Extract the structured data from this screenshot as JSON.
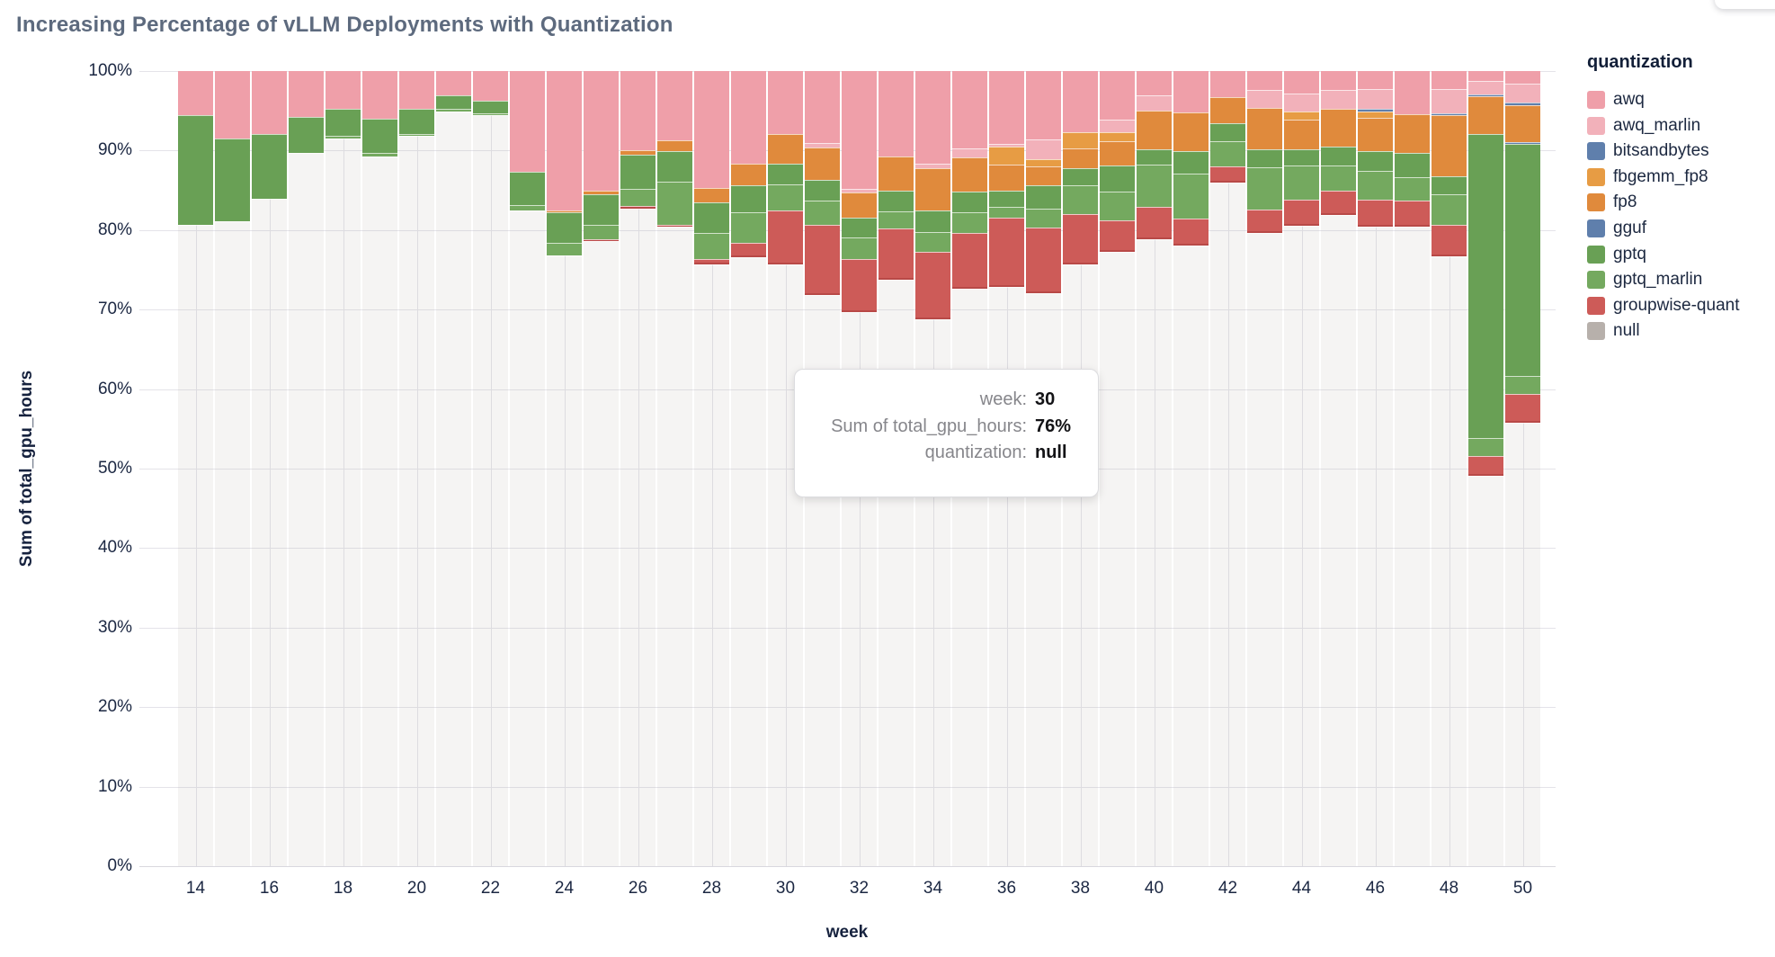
{
  "page": {
    "title": "Increasing Percentage of vLLM Deployments with Quantization"
  },
  "legend": {
    "title": "quantization",
    "items": [
      {
        "label": "awq",
        "color": "#ef9fa9"
      },
      {
        "label": "awq_marlin",
        "color": "#f2b1ba"
      },
      {
        "label": "bitsandbytes",
        "color": "#5f7fac"
      },
      {
        "label": "fbgemm_fp8",
        "color": "#e79c44"
      },
      {
        "label": "fp8",
        "color": "#e08a3c"
      },
      {
        "label": "gguf",
        "color": "#5f7fac"
      },
      {
        "label": "gptq",
        "color": "#69a055"
      },
      {
        "label": "gptq_marlin",
        "color": "#74a95f"
      },
      {
        "label": "groupwise-quant",
        "color": "#cd5b58"
      },
      {
        "label": "null",
        "color": "#b7b0ab"
      }
    ]
  },
  "tooltip": {
    "rows": [
      {
        "label": "week:",
        "value": "30"
      },
      {
        "label": "Sum of total_gpu_hours:",
        "value": "76%"
      },
      {
        "label": "quantization:",
        "value": "null"
      }
    ]
  },
  "chart_data": {
    "type": "bar",
    "stacked": true,
    "percent_stacked": true,
    "title": "Increasing Percentage of vLLM Deployments with Quantization",
    "xlabel": "week",
    "ylabel": "Sum of total_gpu_hours",
    "ylim": [
      0,
      100
    ],
    "y_ticks": [
      0,
      10,
      20,
      30,
      40,
      50,
      60,
      70,
      80,
      90,
      100
    ],
    "x_ticks": [
      14,
      16,
      18,
      20,
      22,
      24,
      26,
      28,
      30,
      32,
      34,
      36,
      38,
      40,
      42,
      44,
      46,
      48,
      50
    ],
    "grid": true,
    "legend_position": "right",
    "series_order_top_to_bottom": [
      "awq",
      "awq_marlin",
      "bitsandbytes",
      "fbgemm_fp8",
      "fp8",
      "gguf",
      "gptq",
      "gptq_marlin",
      "groupwise-quant",
      "null"
    ],
    "colors": {
      "awq": "#ef9fa9",
      "awq_marlin": "#f2b1ba",
      "bitsandbytes": "#5f7fac",
      "fbgemm_fp8": "#e79c44",
      "fp8": "#e08a3c",
      "gguf": "#5f7fac",
      "gptq": "#69a055",
      "gptq_marlin": "#74a95f",
      "groupwise-quant": "#cd5b58",
      "null": "rgba(182,174,168,0.14)"
    },
    "bars": [
      {
        "week": 14,
        "segments": [
          [
            "awq",
            5.5
          ],
          [
            "gptq",
            13.8
          ],
          [
            "null",
            80.7
          ]
        ]
      },
      {
        "week": 15,
        "segments": [
          [
            "awq",
            8.5
          ],
          [
            "gptq",
            10.4
          ],
          [
            "null",
            81.1
          ]
        ]
      },
      {
        "week": 16,
        "segments": [
          [
            "awq",
            7.9
          ],
          [
            "gptq",
            8.2
          ],
          [
            "null",
            83.9
          ]
        ]
      },
      {
        "week": 17,
        "segments": [
          [
            "awq",
            5.8
          ],
          [
            "gptq",
            4.5
          ],
          [
            "null",
            89.7
          ]
        ]
      },
      {
        "week": 18,
        "segments": [
          [
            "awq",
            4.8
          ],
          [
            "gptq",
            3.4
          ],
          [
            "gptq_marlin",
            0.3
          ],
          [
            "null",
            91.5
          ]
        ]
      },
      {
        "week": 19,
        "segments": [
          [
            "awq",
            6.0
          ],
          [
            "gptq",
            4.3
          ],
          [
            "gptq_marlin",
            0.4
          ],
          [
            "null",
            89.3
          ]
        ]
      },
      {
        "week": 20,
        "segments": [
          [
            "awq",
            4.7
          ],
          [
            "gptq",
            3.2
          ],
          [
            "gptq_marlin",
            0.3
          ],
          [
            "null",
            91.8
          ]
        ]
      },
      {
        "week": 21,
        "segments": [
          [
            "awq",
            3.1
          ],
          [
            "gptq",
            1.7
          ],
          [
            "gptq_marlin",
            0.3
          ],
          [
            "null",
            94.9
          ]
        ]
      },
      {
        "week": 22,
        "segments": [
          [
            "awq",
            3.7
          ],
          [
            "gptq",
            1.6
          ],
          [
            "gptq_marlin",
            0.2
          ],
          [
            "null",
            94.5
          ]
        ]
      },
      {
        "week": 23,
        "segments": [
          [
            "awq",
            12.7
          ],
          [
            "gptq",
            4.2
          ],
          [
            "gptq_marlin",
            0.6
          ],
          [
            "null",
            82.5
          ]
        ]
      },
      {
        "week": 24,
        "segments": [
          [
            "awq",
            17.5
          ],
          [
            "fp8",
            0.3
          ],
          [
            "gptq",
            3.8
          ],
          [
            "gptq_marlin",
            1.6
          ],
          [
            "null",
            76.8
          ]
        ]
      },
      {
        "week": 25,
        "segments": [
          [
            "awq",
            15.1
          ],
          [
            "fp8",
            0.4
          ],
          [
            "gptq",
            3.9
          ],
          [
            "gptq_marlin",
            1.8
          ],
          [
            "groupwise-quant",
            0.2
          ],
          [
            "null",
            78.6
          ]
        ]
      },
      {
        "week": 26,
        "segments": [
          [
            "awq",
            10.0
          ],
          [
            "fp8",
            0.5
          ],
          [
            "gptq",
            4.3
          ],
          [
            "gptq_marlin",
            2.2
          ],
          [
            "groupwise-quant",
            0.3
          ],
          [
            "null",
            82.7
          ]
        ]
      },
      {
        "week": 27,
        "segments": [
          [
            "awq",
            8.7
          ],
          [
            "fp8",
            1.4
          ],
          [
            "gptq",
            3.8
          ],
          [
            "gptq_marlin",
            5.4
          ],
          [
            "groupwise-quant",
            0.3
          ],
          [
            "null",
            80.4
          ]
        ]
      },
      {
        "week": 28,
        "segments": [
          [
            "awq",
            14.7
          ],
          [
            "fp8",
            1.8
          ],
          [
            "gptq",
            3.9
          ],
          [
            "gptq_marlin",
            3.2
          ],
          [
            "groupwise-quant",
            0.7
          ],
          [
            "null",
            75.7
          ]
        ]
      },
      {
        "week": 29,
        "segments": [
          [
            "awq",
            11.7
          ],
          [
            "fp8",
            2.7
          ],
          [
            "gptq",
            3.4
          ],
          [
            "gptq_marlin",
            3.8
          ],
          [
            "groupwise-quant",
            1.8
          ],
          [
            "null",
            76.6
          ]
        ]
      },
      {
        "week": 30,
        "segments": [
          [
            "awq",
            7.9
          ],
          [
            "fp8",
            3.7
          ],
          [
            "gptq",
            2.7
          ],
          [
            "gptq_marlin",
            3.2
          ],
          [
            "groupwise-quant",
            6.8
          ],
          [
            "null",
            75.7
          ]
        ]
      },
      {
        "week": 31,
        "segments": [
          [
            "awq",
            9.1
          ],
          [
            "awq_marlin",
            0.5
          ],
          [
            "fp8",
            4.1
          ],
          [
            "gptq",
            2.6
          ],
          [
            "gptq_marlin",
            3.0
          ],
          [
            "groupwise-quant",
            8.9
          ],
          [
            "null",
            71.8
          ]
        ]
      },
      {
        "week": 32,
        "segments": [
          [
            "awq",
            14.8
          ],
          [
            "awq_marlin",
            0.5
          ],
          [
            "fp8",
            3.1
          ],
          [
            "gptq",
            2.5
          ],
          [
            "gptq_marlin",
            2.7
          ],
          [
            "groupwise-quant",
            6.7
          ],
          [
            "null",
            69.7
          ]
        ]
      },
      {
        "week": 33,
        "segments": [
          [
            "awq",
            10.7
          ],
          [
            "fp8",
            4.3
          ],
          [
            "gptq",
            2.6
          ],
          [
            "gptq_marlin",
            2.2
          ],
          [
            "groupwise-quant",
            6.5
          ],
          [
            "null",
            73.7
          ]
        ]
      },
      {
        "week": 34,
        "segments": [
          [
            "awq",
            11.7
          ],
          [
            "awq_marlin",
            0.5
          ],
          [
            "fp8",
            5.3
          ],
          [
            "gptq",
            2.8
          ],
          [
            "gptq_marlin",
            2.4
          ],
          [
            "groupwise-quant",
            8.5
          ],
          [
            "null",
            68.8
          ]
        ]
      },
      {
        "week": 35,
        "segments": [
          [
            "awq",
            9.7
          ],
          [
            "awq_marlin",
            1.2
          ],
          [
            "fp8",
            4.3
          ],
          [
            "gptq",
            2.6
          ],
          [
            "gptq_marlin",
            2.6
          ],
          [
            "groupwise-quant",
            7.0
          ],
          [
            "null",
            72.6
          ]
        ]
      },
      {
        "week": 36,
        "segments": [
          [
            "awq",
            9.2
          ],
          [
            "awq_marlin",
            0.3
          ],
          [
            "fbgemm_fp8",
            2.3
          ],
          [
            "fp8",
            3.2
          ],
          [
            "gptq",
            2.1
          ],
          [
            "gptq_marlin",
            1.3
          ],
          [
            "groupwise-quant",
            8.7
          ],
          [
            "null",
            72.9
          ]
        ]
      },
      {
        "week": 37,
        "segments": [
          [
            "awq",
            8.6
          ],
          [
            "awq_marlin",
            2.5
          ],
          [
            "fbgemm_fp8",
            0.9
          ],
          [
            "fp8",
            2.4
          ],
          [
            "gptq",
            2.9
          ],
          [
            "gptq_marlin",
            2.4
          ],
          [
            "groupwise-quant",
            8.2
          ],
          [
            "null",
            72.1
          ]
        ]
      },
      {
        "week": 38,
        "segments": [
          [
            "awq",
            7.7
          ],
          [
            "fbgemm_fp8",
            2.0
          ],
          [
            "fp8",
            2.5
          ],
          [
            "gptq",
            2.2
          ],
          [
            "gptq_marlin",
            3.6
          ],
          [
            "groupwise-quant",
            6.3
          ],
          [
            "null",
            75.7
          ]
        ]
      },
      {
        "week": 39,
        "segments": [
          [
            "awq",
            6.1
          ],
          [
            "awq_marlin",
            1.6
          ],
          [
            "fbgemm_fp8",
            1.1
          ],
          [
            "fp8",
            3.1
          ],
          [
            "gptq",
            3.3
          ],
          [
            "gptq_marlin",
            3.6
          ],
          [
            "groupwise-quant",
            3.9
          ],
          [
            "null",
            77.3
          ]
        ]
      },
      {
        "week": 40,
        "segments": [
          [
            "awq",
            3.1
          ],
          [
            "awq_marlin",
            1.9
          ],
          [
            "fp8",
            4.8
          ],
          [
            "gptq",
            2.0
          ],
          [
            "gptq_marlin",
            5.3
          ],
          [
            "groupwise-quant",
            4.1
          ],
          [
            "null",
            78.8
          ]
        ]
      },
      {
        "week": 41,
        "segments": [
          [
            "awq",
            5.2
          ],
          [
            "fp8",
            4.9
          ],
          [
            "gptq",
            2.8
          ],
          [
            "gptq_marlin",
            5.7
          ],
          [
            "groupwise-quant",
            3.3
          ],
          [
            "null",
            78.1
          ]
        ]
      },
      {
        "week": 42,
        "segments": [
          [
            "awq",
            3.3
          ],
          [
            "fp8",
            3.3
          ],
          [
            "gptq",
            2.2
          ],
          [
            "gptq_marlin",
            3.2
          ],
          [
            "groupwise-quant",
            2.0
          ],
          [
            "null",
            86.0
          ]
        ]
      },
      {
        "week": 43,
        "segments": [
          [
            "awq",
            2.4
          ],
          [
            "awq_marlin",
            2.2
          ],
          [
            "fp8",
            5.2
          ],
          [
            "gptq",
            2.3
          ],
          [
            "gptq_marlin",
            5.3
          ],
          [
            "groupwise-quant",
            3.0
          ],
          [
            "null",
            79.6
          ]
        ]
      },
      {
        "week": 44,
        "segments": [
          [
            "awq",
            2.8
          ],
          [
            "awq_marlin",
            2.3
          ],
          [
            "fbgemm_fp8",
            1.0
          ],
          [
            "fp8",
            3.7
          ],
          [
            "gptq",
            2.1
          ],
          [
            "gptq_marlin",
            4.3
          ],
          [
            "groupwise-quant",
            3.3
          ],
          [
            "null",
            80.5
          ]
        ]
      },
      {
        "week": 45,
        "segments": [
          [
            "awq",
            2.4
          ],
          [
            "awq_marlin",
            2.4
          ],
          [
            "fp8",
            4.7
          ],
          [
            "gptq",
            2.4
          ],
          [
            "gptq_marlin",
            3.2
          ],
          [
            "groupwise-quant",
            3.0
          ],
          [
            "null",
            81.9
          ]
        ]
      },
      {
        "week": 46,
        "segments": [
          [
            "awq",
            2.3
          ],
          [
            "awq_marlin",
            2.5
          ],
          [
            "bitsandbytes",
            0.3
          ],
          [
            "fbgemm_fp8",
            0.8
          ],
          [
            "fp8",
            4.2
          ],
          [
            "gptq",
            2.5
          ],
          [
            "gptq_marlin",
            3.6
          ],
          [
            "groupwise-quant",
            3.4
          ],
          [
            "null",
            80.4
          ]
        ]
      },
      {
        "week": 47,
        "segments": [
          [
            "awq",
            5.4
          ],
          [
            "fp8",
            4.9
          ],
          [
            "gptq",
            3.0
          ],
          [
            "gptq_marlin",
            3.0
          ],
          [
            "groupwise-quant",
            3.3
          ],
          [
            "null",
            80.4
          ]
        ]
      },
      {
        "week": 48,
        "segments": [
          [
            "awq",
            2.3
          ],
          [
            "awq_marlin",
            3.0
          ],
          [
            "bitsandbytes",
            0.3
          ],
          [
            "fp8",
            7.6
          ],
          [
            "gptq",
            2.3
          ],
          [
            "gptq_marlin",
            3.8
          ],
          [
            "groupwise-quant",
            4.0
          ],
          [
            "null",
            76.7
          ]
        ]
      },
      {
        "week": 49,
        "segments": [
          [
            "awq",
            1.2
          ],
          [
            "awq_marlin",
            1.7
          ],
          [
            "bitsandbytes",
            0.3
          ],
          [
            "fp8",
            4.7
          ],
          [
            "gptq",
            38.3
          ],
          [
            "gptq_marlin",
            2.2
          ],
          [
            "groupwise-quant",
            2.5
          ],
          [
            "null",
            49.1
          ]
        ]
      },
      {
        "week": 50,
        "segments": [
          [
            "awq",
            1.6
          ],
          [
            "awq_marlin",
            2.4
          ],
          [
            "bitsandbytes",
            0.3
          ],
          [
            "fp8",
            4.6
          ],
          [
            "gguf",
            0.3
          ],
          [
            "gptq",
            29.2
          ],
          [
            "gptq_marlin",
            2.2
          ],
          [
            "groupwise-quant",
            3.6
          ],
          [
            "null",
            55.8
          ]
        ]
      }
    ]
  }
}
